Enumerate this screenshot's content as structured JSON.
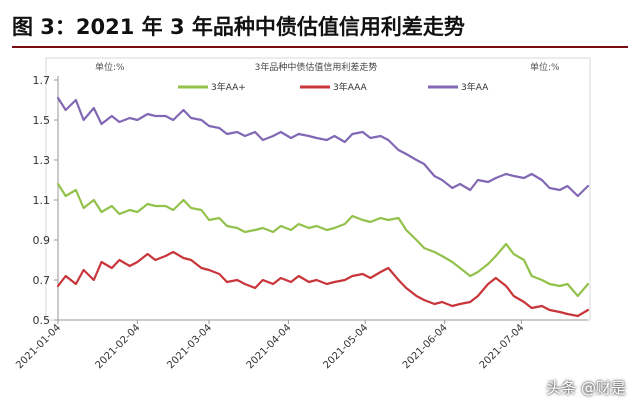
{
  "figure": {
    "title": "图 3：2021 年 3 年品种中债估值信用利差走势"
  },
  "watermark": "头条 @财是",
  "colors": {
    "title_rule": "#7a0d13",
    "AA+": "#92c24b",
    "AAA": "#c8363b",
    "AA": "#8268b4"
  },
  "chart_data": {
    "type": "line",
    "title": "3年品种中债估值信用利差走势",
    "unit_left": "单位:%",
    "unit_right": "单位:%",
    "x_start": "2021-01-04",
    "x_end": "2021-07-30",
    "x_ticks": [
      "2021-01-04",
      "2021-02-04",
      "2021-03-04",
      "2021-04-04",
      "2021-05-04",
      "2021-06-04",
      "2021-07-04"
    ],
    "ylim": [
      0.5,
      1.7
    ],
    "y_ticks": [
      "0.5",
      "0.7",
      "0.9",
      "1.1",
      "1.3",
      "1.5",
      "1.7"
    ],
    "grid": false,
    "legend_position": "top",
    "series": [
      {
        "name": "3年AA+",
        "x": [
          "2021-01-04",
          "2021-01-07",
          "2021-01-11",
          "2021-01-14",
          "2021-01-18",
          "2021-01-21",
          "2021-01-25",
          "2021-01-28",
          "2021-02-01",
          "2021-02-04",
          "2021-02-08",
          "2021-02-11",
          "2021-02-15",
          "2021-02-18",
          "2021-02-22",
          "2021-02-25",
          "2021-03-01",
          "2021-03-04",
          "2021-03-08",
          "2021-03-11",
          "2021-03-15",
          "2021-03-18",
          "2021-03-22",
          "2021-03-25",
          "2021-03-29",
          "2021-04-01",
          "2021-04-05",
          "2021-04-08",
          "2021-04-12",
          "2021-04-15",
          "2021-04-19",
          "2021-04-22",
          "2021-04-26",
          "2021-04-29",
          "2021-05-03",
          "2021-05-06",
          "2021-05-10",
          "2021-05-13",
          "2021-05-17",
          "2021-05-20",
          "2021-05-24",
          "2021-05-27",
          "2021-05-31",
          "2021-06-03",
          "2021-06-07",
          "2021-06-10",
          "2021-06-14",
          "2021-06-17",
          "2021-06-21",
          "2021-06-24",
          "2021-06-28",
          "2021-07-01",
          "2021-07-05",
          "2021-07-08",
          "2021-07-12",
          "2021-07-15",
          "2021-07-19",
          "2021-07-22",
          "2021-07-26",
          "2021-07-30"
        ],
        "values": [
          1.18,
          1.12,
          1.15,
          1.06,
          1.1,
          1.04,
          1.07,
          1.03,
          1.05,
          1.04,
          1.08,
          1.07,
          1.07,
          1.05,
          1.1,
          1.06,
          1.05,
          1.0,
          1.01,
          0.97,
          0.96,
          0.94,
          0.95,
          0.96,
          0.94,
          0.97,
          0.95,
          0.98,
          0.96,
          0.97,
          0.95,
          0.96,
          0.98,
          1.02,
          1.0,
          0.99,
          1.01,
          1.0,
          1.01,
          0.95,
          0.9,
          0.86,
          0.84,
          0.82,
          0.79,
          0.76,
          0.72,
          0.74,
          0.78,
          0.82,
          0.88,
          0.83,
          0.8,
          0.72,
          0.7,
          0.68,
          0.67,
          0.68,
          0.62,
          0.68
        ]
      },
      {
        "name": "3年AAA",
        "x": [
          "2021-01-04",
          "2021-01-07",
          "2021-01-11",
          "2021-01-14",
          "2021-01-18",
          "2021-01-21",
          "2021-01-25",
          "2021-01-28",
          "2021-02-01",
          "2021-02-04",
          "2021-02-08",
          "2021-02-11",
          "2021-02-15",
          "2021-02-18",
          "2021-02-22",
          "2021-02-25",
          "2021-03-01",
          "2021-03-04",
          "2021-03-08",
          "2021-03-11",
          "2021-03-15",
          "2021-03-18",
          "2021-03-22",
          "2021-03-25",
          "2021-03-29",
          "2021-04-01",
          "2021-04-05",
          "2021-04-08",
          "2021-04-12",
          "2021-04-15",
          "2021-04-19",
          "2021-04-22",
          "2021-04-26",
          "2021-04-29",
          "2021-05-03",
          "2021-05-06",
          "2021-05-10",
          "2021-05-13",
          "2021-05-17",
          "2021-05-20",
          "2021-05-24",
          "2021-05-27",
          "2021-05-31",
          "2021-06-03",
          "2021-06-07",
          "2021-06-10",
          "2021-06-14",
          "2021-06-17",
          "2021-06-21",
          "2021-06-24",
          "2021-06-28",
          "2021-07-01",
          "2021-07-05",
          "2021-07-08",
          "2021-07-12",
          "2021-07-15",
          "2021-07-19",
          "2021-07-22",
          "2021-07-26",
          "2021-07-30"
        ],
        "values": [
          0.67,
          0.72,
          0.68,
          0.75,
          0.7,
          0.79,
          0.76,
          0.8,
          0.77,
          0.79,
          0.83,
          0.8,
          0.82,
          0.84,
          0.81,
          0.8,
          0.76,
          0.75,
          0.73,
          0.69,
          0.7,
          0.68,
          0.66,
          0.7,
          0.68,
          0.71,
          0.69,
          0.72,
          0.69,
          0.7,
          0.68,
          0.69,
          0.7,
          0.72,
          0.73,
          0.71,
          0.74,
          0.76,
          0.7,
          0.66,
          0.62,
          0.6,
          0.58,
          0.59,
          0.57,
          0.58,
          0.59,
          0.62,
          0.68,
          0.71,
          0.67,
          0.62,
          0.59,
          0.56,
          0.57,
          0.55,
          0.54,
          0.53,
          0.52,
          0.55
        ]
      },
      {
        "name": "3年AA",
        "x": [
          "2021-01-04",
          "2021-01-07",
          "2021-01-11",
          "2021-01-14",
          "2021-01-18",
          "2021-01-21",
          "2021-01-25",
          "2021-01-28",
          "2021-02-01",
          "2021-02-04",
          "2021-02-08",
          "2021-02-11",
          "2021-02-15",
          "2021-02-18",
          "2021-02-22",
          "2021-02-25",
          "2021-03-01",
          "2021-03-04",
          "2021-03-08",
          "2021-03-11",
          "2021-03-15",
          "2021-03-18",
          "2021-03-22",
          "2021-03-25",
          "2021-03-29",
          "2021-04-01",
          "2021-04-05",
          "2021-04-08",
          "2021-04-12",
          "2021-04-15",
          "2021-04-19",
          "2021-04-22",
          "2021-04-26",
          "2021-04-29",
          "2021-05-03",
          "2021-05-06",
          "2021-05-10",
          "2021-05-13",
          "2021-05-17",
          "2021-05-20",
          "2021-05-24",
          "2021-05-27",
          "2021-05-31",
          "2021-06-03",
          "2021-06-07",
          "2021-06-10",
          "2021-06-14",
          "2021-06-17",
          "2021-06-21",
          "2021-06-24",
          "2021-06-28",
          "2021-07-01",
          "2021-07-05",
          "2021-07-08",
          "2021-07-12",
          "2021-07-15",
          "2021-07-19",
          "2021-07-22",
          "2021-07-26",
          "2021-07-30"
        ],
        "values": [
          1.61,
          1.55,
          1.6,
          1.5,
          1.56,
          1.48,
          1.52,
          1.49,
          1.51,
          1.5,
          1.53,
          1.52,
          1.52,
          1.5,
          1.55,
          1.51,
          1.5,
          1.47,
          1.46,
          1.43,
          1.44,
          1.42,
          1.44,
          1.4,
          1.42,
          1.44,
          1.41,
          1.43,
          1.42,
          1.41,
          1.4,
          1.42,
          1.39,
          1.43,
          1.44,
          1.41,
          1.42,
          1.4,
          1.35,
          1.33,
          1.3,
          1.28,
          1.22,
          1.2,
          1.16,
          1.18,
          1.15,
          1.2,
          1.19,
          1.21,
          1.23,
          1.22,
          1.21,
          1.23,
          1.2,
          1.16,
          1.15,
          1.17,
          1.12,
          1.17
        ]
      }
    ]
  }
}
